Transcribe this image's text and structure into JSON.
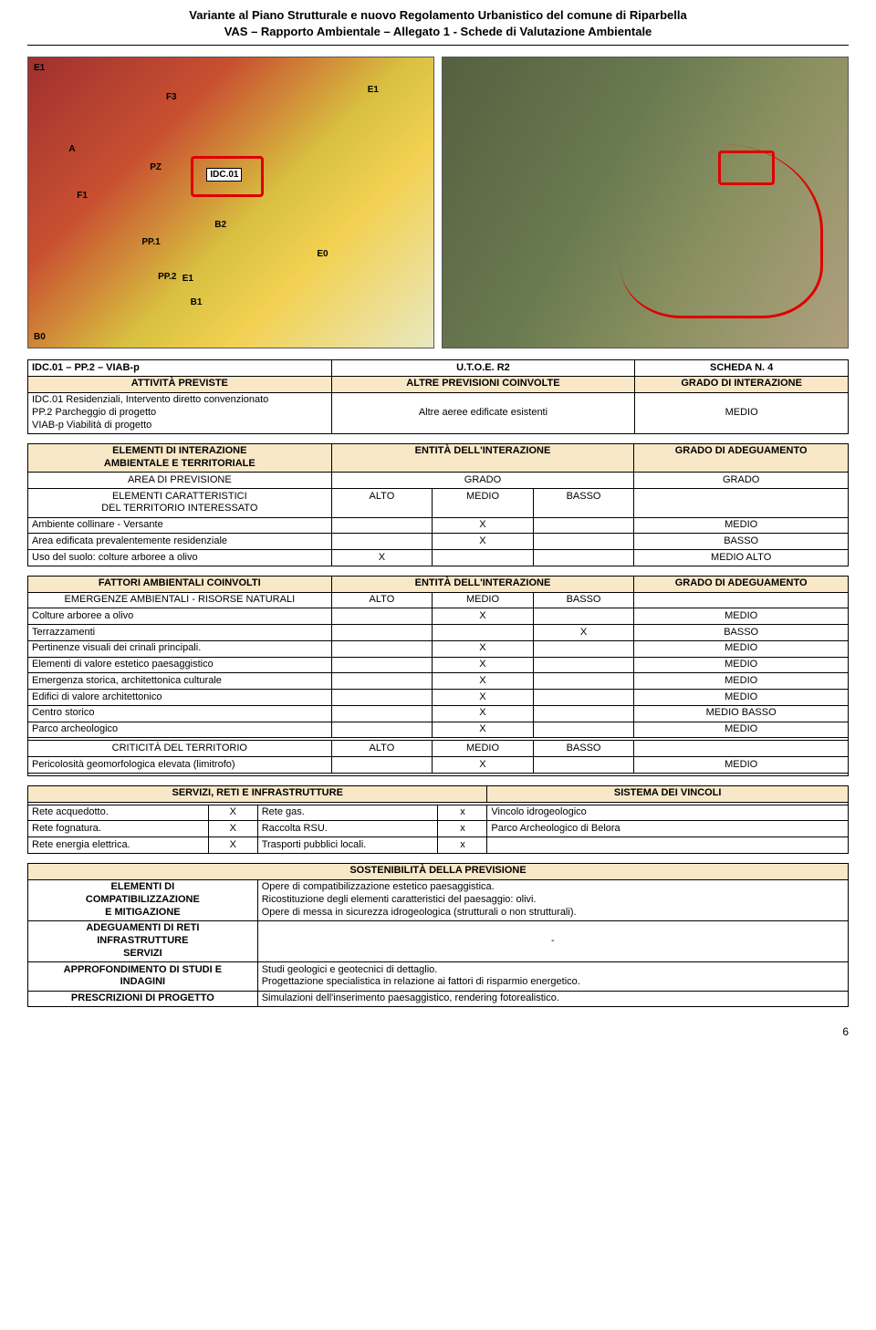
{
  "header": {
    "line1": "Variante al Piano Strutturale e nuovo Regolamento Urbanistico del comune di Riparbella",
    "line2": "VAS – Rapporto Ambientale – Allegato 1 - Schede di Valutazione Ambientale"
  },
  "map_labels": {
    "e1a": "E1",
    "e1b": "E1",
    "e1c": "E1",
    "e0": "E0",
    "b0": "B0",
    "b1": "B1",
    "b2": "B2",
    "a": "A",
    "f1": "F1",
    "f3": "F3",
    "pz": "PZ",
    "pp1": "PP.1",
    "pp2": "PP.2",
    "idc": "IDC.01"
  },
  "table1": {
    "row1": {
      "c1": "IDC.01 – PP.2 – VIAB-p",
      "c2": "U.T.O.E. R2",
      "c3": "SCHEDA N. 4"
    },
    "hdr": {
      "c1": "ATTIVITÀ PREVISTE",
      "c2": "ALTRE PREVISIONI COINVOLTE",
      "c3": "GRADO DI INTERAZIONE"
    },
    "body1": "IDC.01 Residenziali, Intervento diretto convenzionato\nPP.2 Parcheggio di progetto\nVIAB-p Viabilità di progetto",
    "body2": "Altre aeree edificate esistenti",
    "body3": "MEDIO"
  },
  "table2": {
    "hdr1": "ELEMENTI DI INTERAZIONE\nAMBIENTALE E TERRITORIALE",
    "hdr2": "ENTITÀ DELL'INTERAZIONE",
    "hdr3": "GRADO DI ADEGUAMENTO",
    "r1c1": "AREA DI PREVISIONE",
    "r1c2": "GRADO",
    "r1c3": "GRADO",
    "r2c1": "ELEMENTI CARATTERISTICI\nDEL TERRITORIO INTERESSATO",
    "alto": "ALTO",
    "medio": "MEDIO",
    "basso": "BASSO",
    "rows": [
      {
        "label": "Ambiente collinare - Versante",
        "alto": "",
        "medio": "X",
        "basso": "",
        "g": "MEDIO"
      },
      {
        "label": "Area edificata prevalentemente residenziale",
        "alto": "",
        "medio": "X",
        "basso": "",
        "g": "BASSO"
      },
      {
        "label": "Uso del suolo: colture arboree a olivo",
        "alto": "X",
        "medio": "",
        "basso": "",
        "g": "MEDIO ALTO"
      }
    ]
  },
  "table3": {
    "hdr1": "FATTORI AMBIENTALI COINVOLTI",
    "hdr2": "ENTITÀ DELL'INTERAZIONE",
    "hdr3": "GRADO DI ADEGUAMENTO",
    "sub1": "EMERGENZE AMBIENTALI  - RISORSE NATURALI",
    "alto": "ALTO",
    "medio": "MEDIO",
    "basso": "BASSO",
    "rows1": [
      {
        "label": "Colture arboree a olivo",
        "a": "",
        "m": "X",
        "b": "",
        "g": "MEDIO"
      },
      {
        "label": "Terrazzamenti",
        "a": "",
        "m": "",
        "b": "X",
        "g": "BASSO"
      },
      {
        "label": "Pertinenze visuali dei crinali principali.",
        "a": "",
        "m": "X",
        "b": "",
        "g": "MEDIO"
      },
      {
        "label": "Elementi di valore estetico paesaggistico",
        "a": "",
        "m": "X",
        "b": "",
        "g": "MEDIO"
      },
      {
        "label": "Emergenza storica, architettonica culturale",
        "a": "",
        "m": "X",
        "b": "",
        "g": "MEDIO"
      },
      {
        "label": "Edifici di valore architettonico",
        "a": "",
        "m": "X",
        "b": "",
        "g": "MEDIO"
      },
      {
        "label": "Centro storico",
        "a": "",
        "m": "X",
        "b": "",
        "g": "MEDIO BASSO"
      },
      {
        "label": "Parco archeologico",
        "a": "",
        "m": "X",
        "b": "",
        "g": "MEDIO"
      }
    ],
    "sub2": "CRITICITÀ DEL TERRITORIO",
    "rows2": [
      {
        "label": "Pericolosità geomorfologica elevata (limitrofo)",
        "a": "",
        "m": "X",
        "b": "",
        "g": "MEDIO"
      }
    ]
  },
  "table4": {
    "hdr1": "SERVIZI, RETI E INFRASTRUTTURE",
    "hdr2": "SISTEMA DEI VINCOLI",
    "rows": [
      {
        "c1": "Rete acquedotto.",
        "c2": "X",
        "c3": "Rete gas.",
        "c4": "x",
        "c5": "Vincolo idrogeologico"
      },
      {
        "c1": "Rete fognatura.",
        "c2": "X",
        "c3": "Raccolta RSU.",
        "c4": "x",
        "c5": "Parco Archeologico di Belora"
      },
      {
        "c1": "Rete energia elettrica.",
        "c2": "X",
        "c3": "Trasporti pubblici locali.",
        "c4": "x",
        "c5": ""
      }
    ]
  },
  "table5": {
    "hdr": "SOSTENIBILITÀ DELLA PREVISIONE",
    "r1_label": "ELEMENTI DI\nCOMPATIBILIZZAZIONE\nE MITIGAZIONE",
    "r1_text": "Opere di compatibilizzazione estetico paesaggistica.\nRicostituzione degli elementi caratteristici del paesaggio: olivi.\nOpere di messa in sicurezza idrogeologica (strutturali o non strutturali).",
    "r2_label": "ADEGUAMENTI DI RETI\nINFRASTRUTTURE\nSERVIZI",
    "r2_text": "-",
    "r3_label": "APPROFONDIMENTO DI STUDI E\nINDAGINI",
    "r3_text": "Studi geologici e geotecnici di dettaglio.\nProgettazione specialistica in relazione ai fattori di risparmio energetico.",
    "r4_label": "PRESCRIZIONI DI PROGETTO",
    "r4_text": "Simulazioni dell'inserimento paesaggistico, rendering fotorealistico."
  },
  "page_num": "6"
}
